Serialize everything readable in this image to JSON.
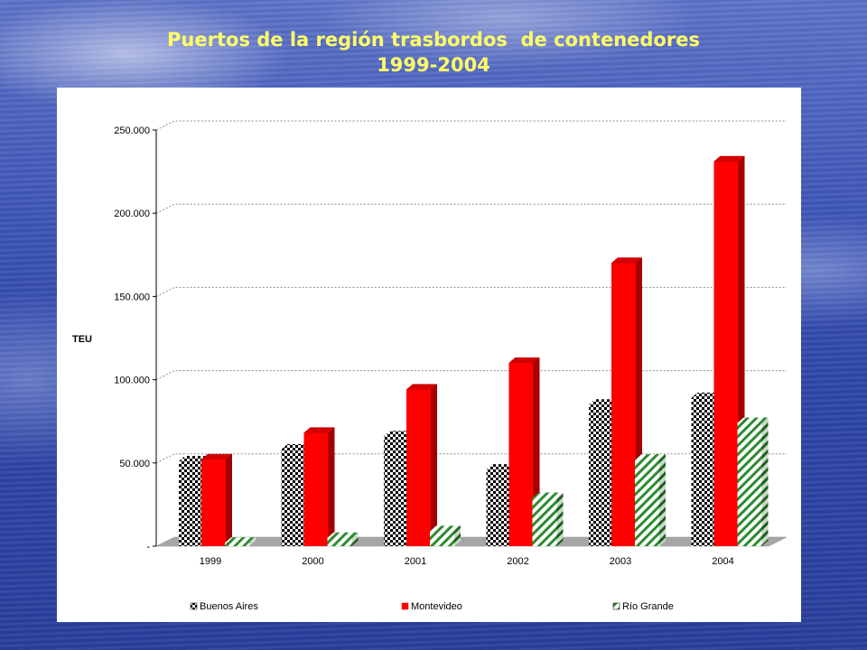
{
  "title_line1": "Puertos de la región trasbordos  de contenedores",
  "title_line2": "1999-2004",
  "colors": {
    "title": "#ffff66",
    "buenos_aires": "#000000",
    "montevideo": "#ff0000",
    "rio_grande": "#2e8b2e"
  },
  "chart_data": {
    "type": "bar",
    "categories": [
      "1999",
      "2000",
      "2001",
      "2002",
      "2003",
      "2004"
    ],
    "ylabel": "TEU",
    "ylim": [
      0,
      250000
    ],
    "yticks": [
      0,
      50000,
      100000,
      150000,
      200000,
      250000
    ],
    "ytick_labels": [
      "-",
      "50.000",
      "100.000",
      "150.000",
      "200.000",
      "250.000"
    ],
    "grid": true,
    "legend_position": "bottom",
    "series": [
      {
        "name": "Buenos Aires",
        "pattern": "checker",
        "values": [
          51000,
          58000,
          66000,
          46000,
          85000,
          89000
        ]
      },
      {
        "name": "Montevideo",
        "pattern": "solid",
        "values": [
          52000,
          68000,
          94000,
          110000,
          170000,
          231000
        ]
      },
      {
        "name": "Río Grande",
        "pattern": "diagonal",
        "values": [
          2000,
          5000,
          9000,
          29000,
          52000,
          74000
        ]
      }
    ]
  }
}
